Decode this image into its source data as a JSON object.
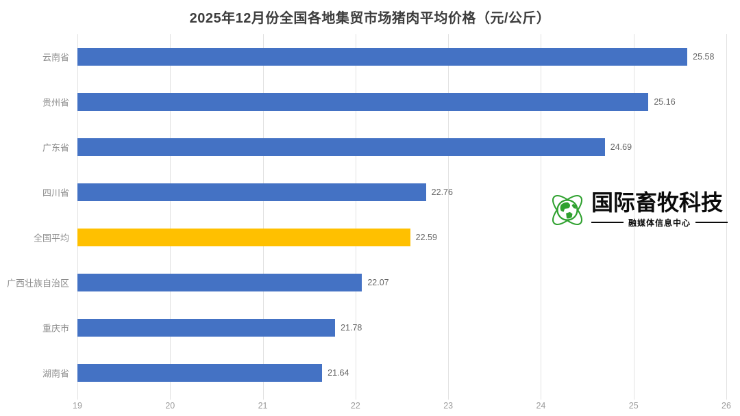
{
  "chart_data": {
    "type": "bar",
    "orientation": "horizontal",
    "title": "2025年12月份全国各地集贸市场猪肉平均价格（元/公斤）",
    "categories": [
      "云南省",
      "贵州省",
      "广东省",
      "四川省",
      "全国平均",
      "广西壮族自治区",
      "重庆市",
      "湖南省"
    ],
    "values": [
      25.58,
      25.16,
      24.69,
      22.76,
      22.59,
      22.07,
      21.78,
      21.64
    ],
    "data_labels": [
      "25.58",
      "25.16",
      "24.69",
      "22.76",
      "22.59",
      "22.07",
      "21.78",
      "21.64"
    ],
    "highlight_index": 4,
    "highlight_category": "全国平均",
    "xlim": [
      19,
      26
    ],
    "x_ticks": [
      "19",
      "20",
      "21",
      "22",
      "23",
      "24",
      "25",
      "26"
    ],
    "grid": true,
    "legend": "none",
    "colors": {
      "bar_blue": "#4472C4",
      "bar_highlight": "#FFC000",
      "gridline": "#E2E2E2",
      "title_text": "#3D3D3D",
      "category_label": "#8C8C8C",
      "value_label": "#666666",
      "tick_label": "#9B9B9B",
      "background": "#FFFFFF"
    }
  },
  "watermark": {
    "brand": "国际畜牧科技",
    "tagline": "融媒体信息中心",
    "icon": "globe-orbit-icon",
    "icon_color": "#2FA12F",
    "text_color": "#0B0B0B"
  }
}
